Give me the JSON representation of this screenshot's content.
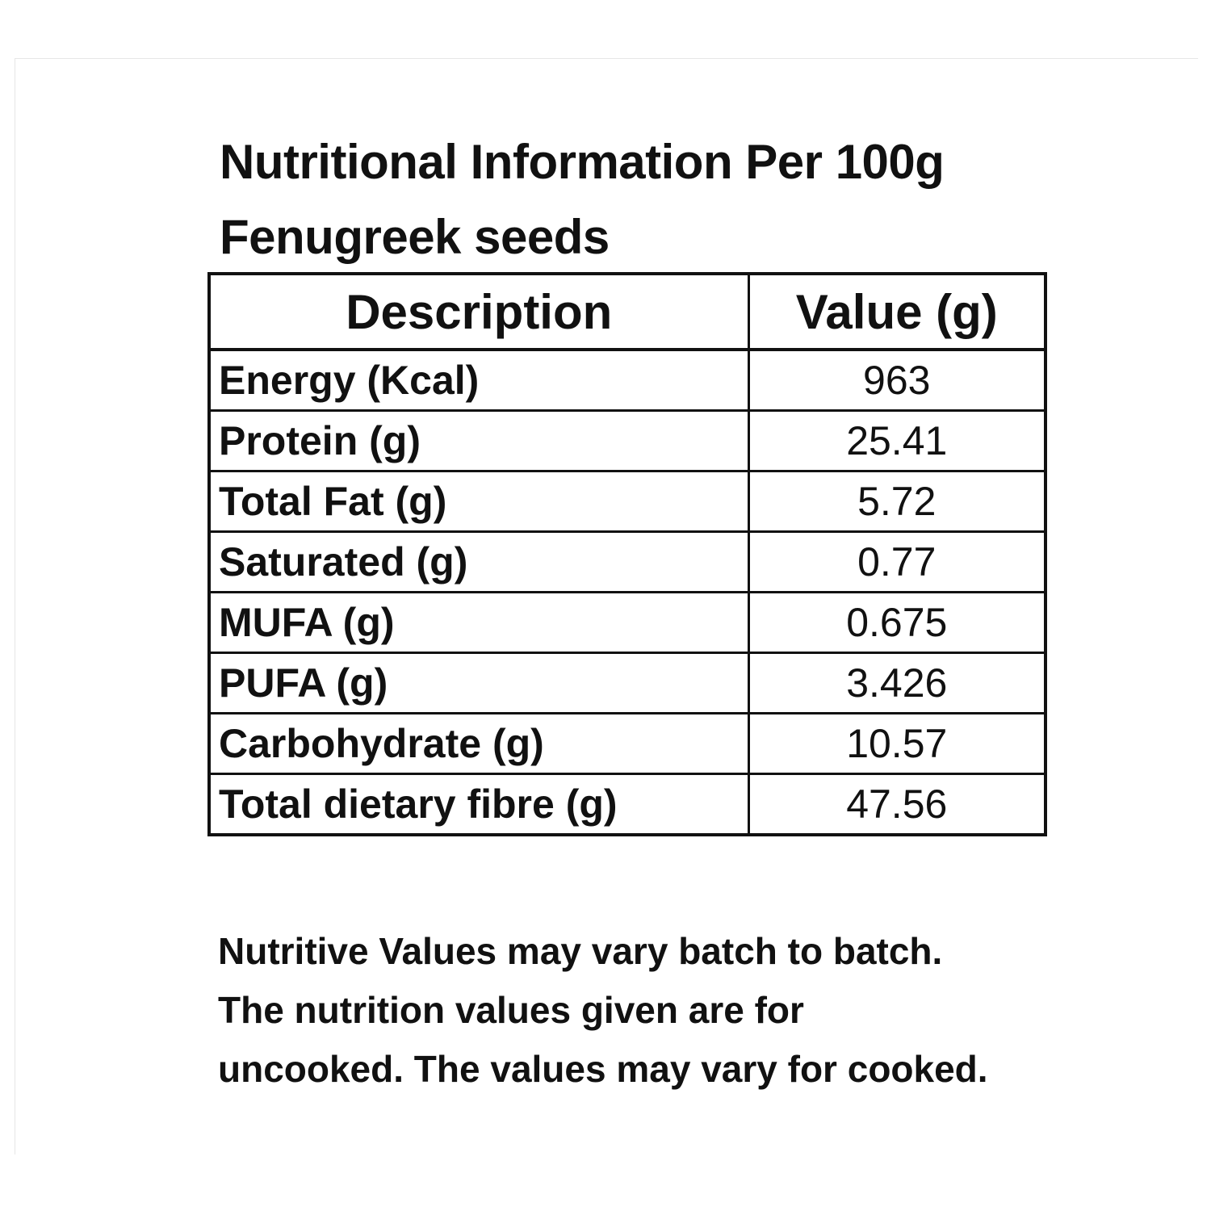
{
  "title": {
    "line1": "Nutritional Information Per 100g",
    "line2": "Fenugreek seeds"
  },
  "table": {
    "headers": [
      "Description",
      "Value (g)"
    ],
    "rows": [
      {
        "description": "Energy (Kcal)",
        "value": "963"
      },
      {
        "description": "Protein (g)",
        "value": "25.41"
      },
      {
        "description": "Total Fat (g)",
        "value": "5.72"
      },
      {
        "description": "Saturated (g)",
        "value": "0.77"
      },
      {
        "description": "MUFA (g)",
        "value": "0.675"
      },
      {
        "description": "PUFA (g)",
        "value": "3.426"
      },
      {
        "description": "Carbohydrate (g)",
        "value": "10.57"
      },
      {
        "description": "Total dietary fibre (g)",
        "value": "47.56"
      }
    ]
  },
  "notes": [
    "Nutritive Values may vary batch to batch.",
    "The nutrition values given are for",
    "uncooked. The values may vary for cooked."
  ],
  "colors": {
    "text": "#111111",
    "background": "#ffffff",
    "border": "#111111"
  }
}
